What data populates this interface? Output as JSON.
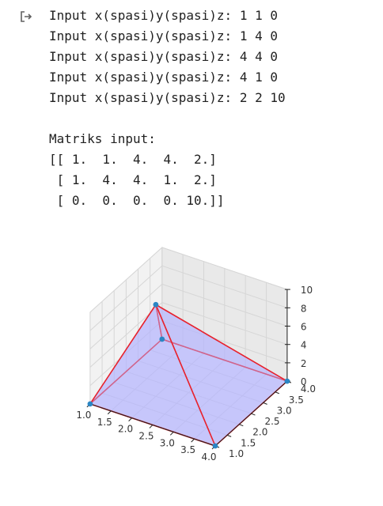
{
  "output": {
    "prompt_lines": [
      "Input x(spasi)y(spasi)z: 1 1 0",
      "Input x(spasi)y(spasi)z: 1 4 0",
      "Input x(spasi)y(spasi)z: 4 4 0",
      "Input x(spasi)y(spasi)z: 4 1 0",
      "Input x(spasi)y(spasi)z: 2 2 10"
    ],
    "matrix_header": "Matriks input:",
    "matrix_lines": [
      "[[ 1.  1.  4.  4.  2.]",
      " [ 1.  4.  4.  1.  2.]",
      " [ 0.  0.  0.  0. 10.]]"
    ]
  },
  "chart_data": {
    "type": "scatter3d",
    "points": [
      {
        "x": 1,
        "y": 1,
        "z": 0
      },
      {
        "x": 1,
        "y": 4,
        "z": 0
      },
      {
        "x": 4,
        "y": 4,
        "z": 0
      },
      {
        "x": 4,
        "y": 1,
        "z": 0
      },
      {
        "x": 2,
        "y": 2,
        "z": 10
      }
    ],
    "x_ticks": [
      "1.0",
      "1.5",
      "2.0",
      "2.5",
      "3.0",
      "3.5",
      "4.0"
    ],
    "y_ticks": [
      "1.0",
      "1.5",
      "2.0",
      "2.5",
      "3.0",
      "3.5",
      "4.0"
    ],
    "z_ticks": [
      "0",
      "2",
      "4",
      "6",
      "8",
      "10"
    ],
    "xlim": [
      1,
      4
    ],
    "ylim": [
      1,
      4
    ],
    "zlim": [
      0,
      10
    ],
    "grid": true,
    "colors": {
      "face": "#b3b3ff",
      "edge": "#e8232d",
      "point": "#2b86c4"
    }
  }
}
